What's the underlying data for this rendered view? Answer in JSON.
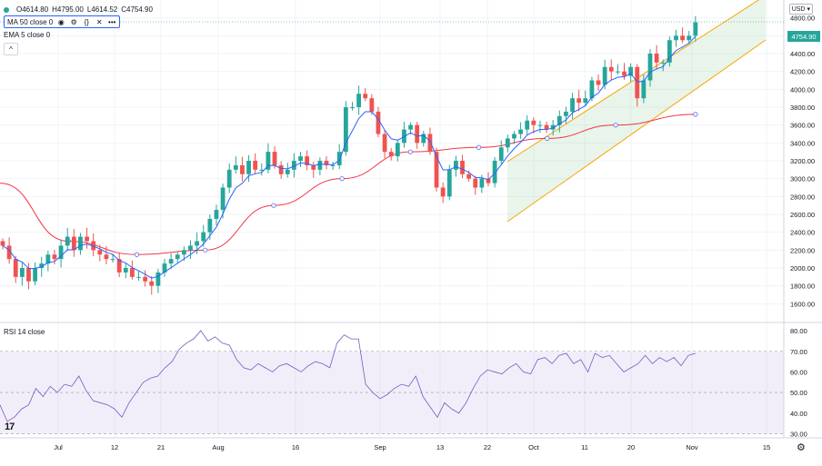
{
  "legend": {
    "ohlc": {
      "o": "O4614.80",
      "h": "H4795.00",
      "l": "L4614.52",
      "c": "C4754.90"
    },
    "ma": "MA 50 close 0",
    "ema": "EMA 5 close 0",
    "rsi": "RSI 14 close"
  },
  "currency": "USD",
  "last_price": "4754.90",
  "colors": {
    "up": "#26a69a",
    "down": "#ef5350",
    "ma": "#f23645",
    "ema": "#2962ff",
    "rsi": "#7e57c2",
    "channel": "#f7a600"
  },
  "icons": [
    "eye-icon",
    "settings-icon",
    "source-icon",
    "close-icon",
    "more-icon",
    "collapse-icon",
    "tradingview-logo-icon",
    "gear-icon"
  ],
  "chart_data": {
    "type": "candlestick",
    "price_axis": {
      "min": 1400,
      "max": 5000,
      "ticks": [
        "1600.00",
        "1800.00",
        "2000.00",
        "2200.00",
        "2400.00",
        "2600.00",
        "2800.00",
        "3000.00",
        "3200.00",
        "3400.00",
        "3600.00",
        "3800.00",
        "4000.00",
        "4200.00",
        "4400.00",
        "4600.00",
        "4800.00"
      ]
    },
    "x_ticks": [
      "Jul",
      "12",
      "21",
      "Aug",
      "16",
      "Sep",
      "13",
      "22",
      "Oct",
      "11",
      "20",
      "Nov",
      "15"
    ],
    "close": [
      2250,
      2100,
      1900,
      2000,
      1850,
      2000,
      2050,
      2150,
      2100,
      2250,
      2350,
      2200,
      2350,
      2300,
      2200,
      2150,
      2100,
      2100,
      1950,
      2000,
      1900,
      1900,
      1850,
      1800,
      1950,
      2050,
      2100,
      2150,
      2200,
      2250,
      2300,
      2400,
      2550,
      2650,
      2900,
      3100,
      3150,
      3050,
      3200,
      3100,
      3100,
      3300,
      3150,
      3050,
      3100,
      3200,
      3250,
      3150,
      3100,
      3200,
      3150,
      3150,
      3300,
      3800,
      3800,
      3950,
      3900,
      3750,
      3500,
      3300,
      3250,
      3400,
      3550,
      3600,
      3400,
      3500,
      3300,
      2900,
      2800,
      3100,
      3200,
      3050,
      3000,
      2900,
      3000,
      2950,
      3200,
      3350,
      3450,
      3500,
      3550,
      3650,
      3600,
      3600,
      3550,
      3600,
      3700,
      3750,
      3900,
      3850,
      3900,
      4100,
      4050,
      4250,
      4200,
      4200,
      4150,
      4250,
      3900,
      4100,
      4400,
      4300,
      4300,
      4550,
      4600,
      4550,
      4600,
      4750
    ],
    "open_first": 2300,
    "ma50": [
      [
        0,
        2950
      ],
      [
        30,
        2300
      ],
      [
        60,
        2150
      ],
      [
        90,
        2200
      ],
      [
        120,
        2700
      ],
      [
        150,
        3000
      ],
      [
        180,
        3300
      ],
      [
        210,
        3350
      ],
      [
        240,
        3450
      ],
      [
        270,
        3600
      ],
      [
        305,
        3720
      ]
    ],
    "rsi": {
      "min": 28,
      "max": 84,
      "ticks": [
        "30.00",
        "40.00",
        "50.00",
        "60.00",
        "70.00",
        "80.00"
      ],
      "band": [
        30,
        70
      ],
      "values": [
        44,
        36,
        38,
        42,
        44,
        52,
        48,
        53,
        50,
        54,
        53,
        58,
        51,
        46,
        45,
        44,
        42,
        38,
        45,
        50,
        55,
        57,
        58,
        62,
        65,
        71,
        74,
        76,
        80,
        75,
        77,
        74,
        73,
        66,
        62,
        61,
        64,
        62,
        60,
        63,
        64,
        62,
        60,
        63,
        65,
        64,
        62,
        74,
        78,
        76,
        76,
        54,
        50,
        47,
        49,
        52,
        54,
        53,
        58,
        48,
        43,
        38,
        45,
        42,
        40,
        45,
        52,
        58,
        61,
        60,
        59,
        62,
        64,
        60,
        59,
        66,
        67,
        64,
        68,
        69,
        64,
        66,
        60,
        69,
        67,
        68,
        64,
        60,
        62,
        64,
        68,
        64,
        67,
        65,
        67,
        63,
        68,
        69
      ]
    }
  }
}
